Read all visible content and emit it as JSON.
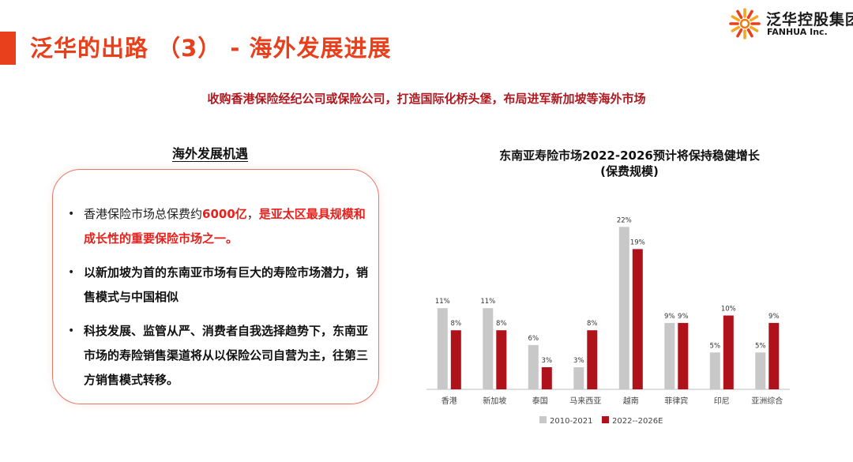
{
  "header": {
    "title": "泛华的出路 （3） - 海外发展进展",
    "subtitle": "收购香港保险经纪公司或保险公司，打造国际化桥头堡，布局进军新加坡等海外市场"
  },
  "logo": {
    "name": "泛华控股集团",
    "english": "FANHUA Inc."
  },
  "left_panel": {
    "heading": "海外发展机遇",
    "bullets": [
      [
        {
          "text": "香港保险市场总保费约",
          "style": "normal"
        },
        {
          "text": "6000亿",
          "style": "red"
        },
        {
          "text": "，",
          "style": "normal"
        },
        {
          "text": "是亚太区最具规模和成长性的重要保险市场之一。",
          "style": "red"
        }
      ],
      [
        {
          "text": "以新加坡为首的东南亚市场有巨大的寿险市场潜力，销售模式与中国相似",
          "style": "bold"
        }
      ],
      [
        {
          "text": "科技发展、监管从严、消费者自我选择趋势下，东南亚市场的寿险销售渠道将从以保险公司自营为主，往第三方销售模式转移。",
          "style": "bold"
        }
      ]
    ]
  },
  "colors": {
    "accent": "#e8401c",
    "series_grey": "#c8c8c8",
    "series_red": "#b0121b"
  },
  "chart_data": {
    "type": "bar",
    "title": "东南亚寿险市场2022-2026预计将保持稳健增长",
    "subtitle": "(保费规模)",
    "categories": [
      "香港",
      "新加坡",
      "泰国",
      "马来西亚",
      "越南",
      "菲律宾",
      "印尼",
      "亚洲综合"
    ],
    "series": [
      {
        "name": "2010-2021",
        "values": [
          11,
          11,
          6,
          3,
          22,
          9,
          5,
          5
        ]
      },
      {
        "name": "2022--2026E",
        "values": [
          8,
          8,
          3,
          8,
          19,
          9,
          10,
          9
        ]
      }
    ],
    "value_suffix": "%",
    "ylim": [
      0,
      23
    ],
    "grid": false,
    "legend_position": "bottom"
  }
}
